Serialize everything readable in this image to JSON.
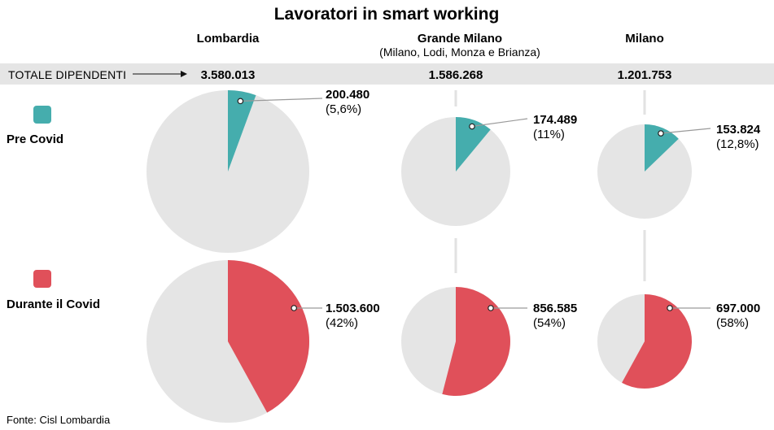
{
  "chart_data": {
    "type": "pie",
    "title": "Lavoratori in smart working",
    "source": "Fonte: Cisl Lombardia",
    "totals_label": "TOTALE DIPENDENTI",
    "columns": [
      {
        "name": "Lombardia",
        "sub": "",
        "total": "3.580.013"
      },
      {
        "name": "Grande Milano",
        "sub": "(Milano, Lodi, Monza e Brianza)",
        "total": "1.586.268"
      },
      {
        "name": "Milano",
        "sub": "",
        "total": "1.201.753"
      }
    ],
    "series": [
      {
        "name": "Pre Covid",
        "color": "#45adad",
        "values": [
          {
            "value": "200.480",
            "pct_label": "(5,6%)",
            "share": 0.056
          },
          {
            "value": "174.489",
            "pct_label": "(11%)",
            "share": 0.11
          },
          {
            "value": "153.824",
            "pct_label": "(12,8%)",
            "share": 0.128
          }
        ]
      },
      {
        "name": "Durante il Covid",
        "color": "#e0505a",
        "values": [
          {
            "value": "1.503.600",
            "pct_label": "(42%)",
            "share": 0.42
          },
          {
            "value": "856.585",
            "pct_label": "(54%)",
            "share": 0.54
          },
          {
            "value": "697.000",
            "pct_label": "(58%)",
            "share": 0.58
          }
        ]
      }
    ],
    "colors": {
      "pie_background": "#e5e5e5",
      "band": "#e5e5e5",
      "connector": "#9a9a9a"
    }
  }
}
